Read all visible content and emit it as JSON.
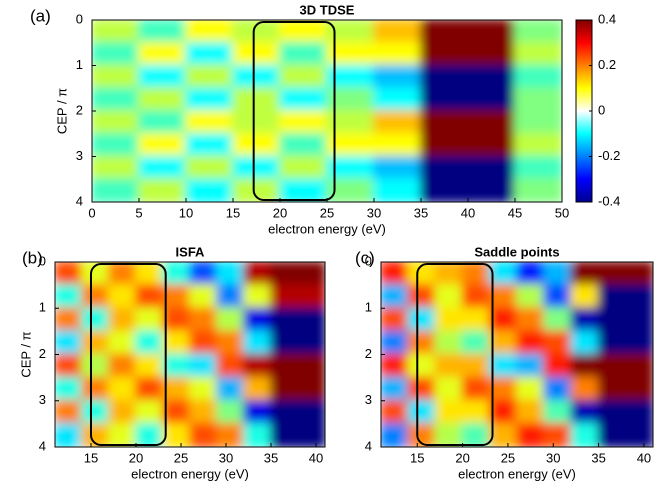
{
  "chart_data": [
    {
      "type": "heatmap",
      "panel_label": "(a)",
      "title": "3D TDSE",
      "x_label": "electron energy (eV)",
      "y_label": "CEP / π",
      "x": [
        2.5,
        7.5,
        12.5,
        17.5,
        22.5,
        27.5,
        32.5,
        37.5,
        42.5,
        47.5
      ],
      "y": [
        0.25,
        0.75,
        1.25,
        1.75,
        2.25,
        2.75,
        3.25,
        3.75
      ],
      "values": [
        [
          0.05,
          -0.05,
          0.1,
          0.05,
          0.1,
          0.05,
          0.15,
          0.4,
          0.4,
          0.0
        ],
        [
          -0.05,
          0.1,
          -0.1,
          0.1,
          -0.05,
          0.1,
          0.1,
          0.4,
          0.4,
          0.05
        ],
        [
          0.05,
          -0.1,
          0.05,
          -0.1,
          0.05,
          -0.1,
          -0.15,
          -0.4,
          -0.4,
          -0.05
        ],
        [
          -0.05,
          0.05,
          -0.1,
          0.05,
          -0.1,
          0.0,
          -0.1,
          -0.4,
          -0.4,
          0.0
        ],
        [
          0.05,
          -0.05,
          0.1,
          0.05,
          0.1,
          0.05,
          0.15,
          0.4,
          0.4,
          0.0
        ],
        [
          -0.05,
          0.1,
          -0.1,
          0.1,
          -0.05,
          0.1,
          0.1,
          0.4,
          0.4,
          0.05
        ],
        [
          0.05,
          -0.1,
          0.05,
          -0.1,
          0.05,
          -0.1,
          -0.15,
          -0.4,
          -0.4,
          -0.05
        ],
        [
          -0.05,
          0.05,
          -0.1,
          0.05,
          -0.1,
          0.0,
          -0.1,
          -0.4,
          -0.4,
          0.0
        ]
      ],
      "xlim": [
        0,
        50
      ],
      "xticks": [
        0,
        5,
        10,
        15,
        20,
        25,
        30,
        35,
        40,
        45,
        50
      ],
      "ylim": [
        0,
        4
      ],
      "yticks": [
        0,
        1,
        2,
        3,
        4
      ],
      "y_reversed": true,
      "zlim": [
        -0.4,
        0.4
      ],
      "colorbar": {
        "ticks": [
          0.4,
          0.2,
          0,
          -0.2,
          -0.4
        ]
      },
      "highlight_xlim": [
        17.2,
        25.8
      ]
    },
    {
      "type": "heatmap",
      "panel_label": "(b)",
      "title": "ISFA",
      "x_label": "electron energy (eV)",
      "y_label": "CEP / π",
      "x": [
        12.5,
        15.5,
        18.5,
        21.5,
        24.5,
        27.5,
        30.5,
        33.5,
        36.5,
        39.5
      ],
      "y": [
        0.25,
        0.75,
        1.25,
        1.75,
        2.25,
        2.75,
        3.25,
        3.75
      ],
      "values": [
        [
          0.6,
          0.2,
          0.5,
          0.3,
          -0.2,
          -0.6,
          -0.3,
          0.9,
          1,
          1
        ],
        [
          -0.2,
          0.5,
          0.3,
          0.6,
          0.5,
          0.2,
          -0.5,
          0.2,
          0.9,
          0.9
        ],
        [
          0.5,
          -0.2,
          0.4,
          0.2,
          0.6,
          0.5,
          0.1,
          -0.8,
          -1,
          -1
        ],
        [
          -0.3,
          0.4,
          0.2,
          -0.2,
          0.3,
          0.6,
          0.5,
          -0.3,
          -1,
          -1
        ],
        [
          0.6,
          0.1,
          0.5,
          0.3,
          -0.2,
          -0.3,
          0.6,
          0.9,
          1,
          1
        ],
        [
          -0.2,
          0.5,
          0.3,
          0.6,
          0.4,
          0.2,
          -0.4,
          0.4,
          1,
          1
        ],
        [
          0.5,
          -0.2,
          0.4,
          0.2,
          0.6,
          0.4,
          0.0,
          -0.8,
          -1,
          -1
        ],
        [
          -0.3,
          0.4,
          0.2,
          -0.2,
          0.3,
          0.6,
          0.5,
          -0.2,
          -1,
          -1
        ]
      ],
      "xlim": [
        11,
        41
      ],
      "xticks": [
        15,
        20,
        25,
        30,
        35,
        40
      ],
      "ylim": [
        0,
        4
      ],
      "yticks": [
        0,
        1,
        2,
        3,
        4
      ],
      "y_reversed": true,
      "zlim": [
        -1,
        1
      ],
      "highlight_xlim": [
        15,
        23.3
      ]
    },
    {
      "type": "heatmap",
      "panel_label": "(c)",
      "title": "Saddle points",
      "x_label": "electron energy (eV)",
      "x": [
        12.5,
        15.5,
        18.5,
        21.5,
        24.5,
        27.5,
        30.5,
        33.5,
        36.5,
        39.5
      ],
      "y": [
        0.25,
        0.75,
        1.25,
        1.75,
        2.25,
        2.75,
        3.25,
        3.75
      ],
      "values": [
        [
          0.7,
          0.3,
          0.4,
          0.5,
          -0.3,
          -0.7,
          -0.4,
          1,
          1,
          1
        ],
        [
          -0.4,
          0.6,
          0.2,
          0.6,
          0.5,
          0.1,
          -0.6,
          0.3,
          -1,
          -1
        ],
        [
          0.6,
          -0.3,
          0.3,
          0.3,
          0.7,
          0.5,
          0.0,
          -0.9,
          -1,
          -1
        ],
        [
          -0.5,
          0.5,
          0.1,
          -0.1,
          0.4,
          0.7,
          0.6,
          -0.3,
          -1,
          -1
        ],
        [
          0.7,
          0.2,
          0.4,
          0.4,
          -0.3,
          -0.4,
          0.7,
          1,
          1,
          1
        ],
        [
          -0.4,
          0.6,
          0.2,
          0.6,
          0.5,
          0.2,
          -0.5,
          0.5,
          1,
          1
        ],
        [
          0.6,
          -0.3,
          0.3,
          0.3,
          0.7,
          0.4,
          -0.1,
          -0.9,
          -1,
          -1
        ],
        [
          -0.5,
          0.5,
          0.1,
          -0.1,
          0.4,
          0.7,
          0.6,
          -0.2,
          -1,
          -1
        ]
      ],
      "xlim": [
        11,
        41
      ],
      "xticks": [
        15,
        20,
        25,
        30,
        35,
        40
      ],
      "ylim": [
        0,
        4
      ],
      "yticks": [
        0,
        1,
        2,
        3,
        4
      ],
      "y_reversed": true,
      "zlim": [
        -1,
        1
      ],
      "highlight_xlim": [
        15,
        23.3
      ]
    }
  ]
}
